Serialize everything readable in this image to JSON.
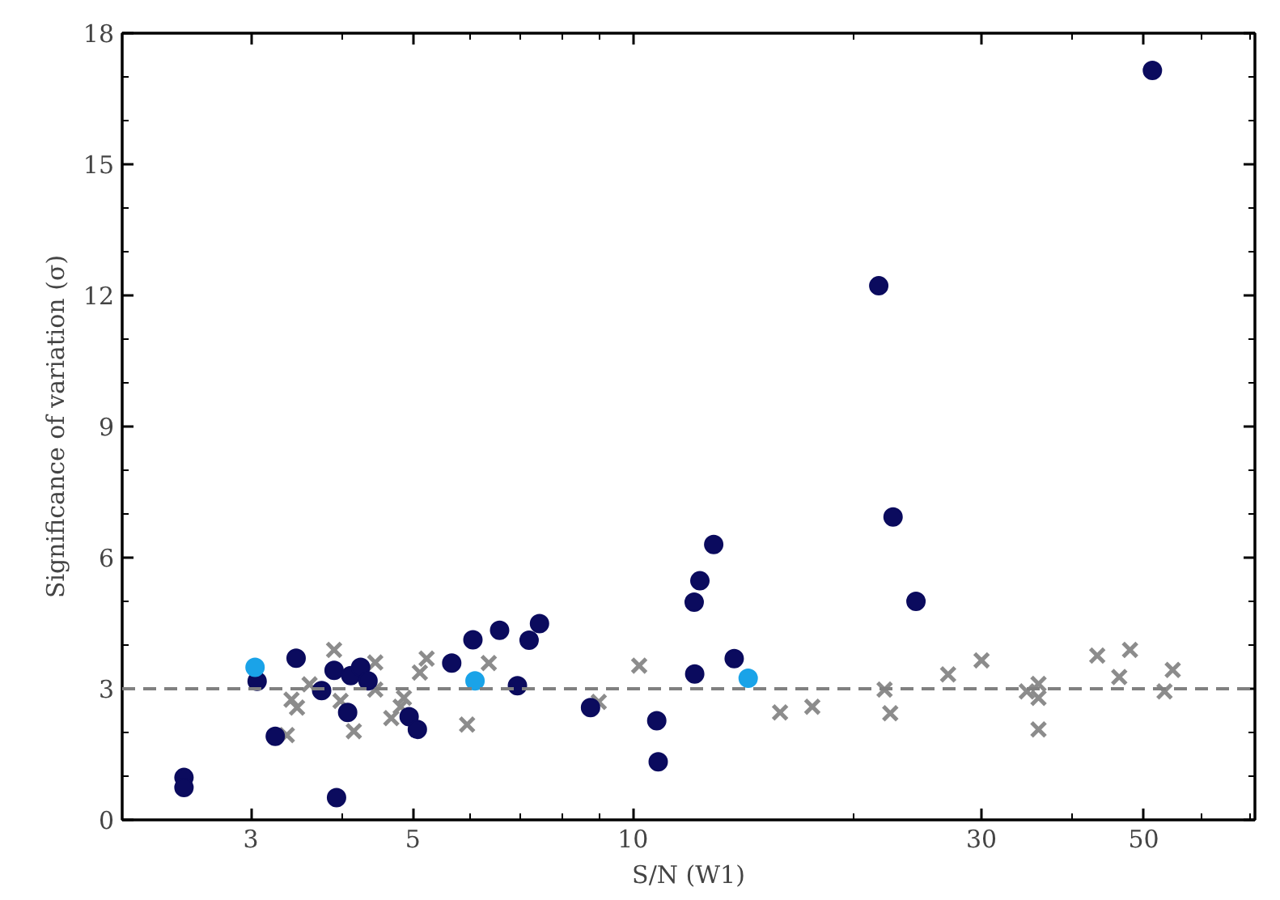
{
  "chart_data": {
    "type": "scatter",
    "xlabel": "S/N (W1)",
    "ylabel": "Significance of variation (σ)",
    "log": "x",
    "grid": false,
    "xlim": [
      2.0,
      71
    ],
    "ylim": [
      0,
      18
    ],
    "xticks": [
      {
        "value": 2,
        "label": null
      },
      3,
      {
        "value": 4,
        "label": null
      },
      5,
      {
        "value": 6,
        "label": null
      },
      {
        "value": 7,
        "label": null
      },
      {
        "value": 8,
        "label": null
      },
      {
        "value": 9,
        "label": null
      },
      10,
      {
        "value": 20,
        "label": null
      },
      30,
      {
        "value": 40,
        "label": null
      },
      50,
      {
        "value": 60,
        "label": null
      },
      {
        "value": 70,
        "label": null
      }
    ],
    "yticks": [
      0,
      {
        "value": 1,
        "label": null
      },
      {
        "value": 2,
        "label": null
      },
      3,
      {
        "value": 4,
        "label": null
      },
      {
        "value": 5,
        "label": null
      },
      6,
      {
        "value": 7,
        "label": null
      },
      {
        "value": 8,
        "label": null
      },
      9,
      {
        "value": 10,
        "label": null
      },
      {
        "value": 11,
        "label": null
      },
      12,
      {
        "value": 13,
        "label": null
      },
      {
        "value": 14,
        "label": null
      },
      15,
      {
        "value": 16,
        "label": null
      },
      {
        "value": 17,
        "label": null
      },
      18
    ],
    "ref_lines": [
      {
        "axis": "y",
        "value": 3,
        "label": null,
        "color": "#808080",
        "line_style": "dashed"
      }
    ],
    "series": [
      {
        "color": "#8c8c8c",
        "marker": "cross",
        "x": [
          3.9,
          3.61,
          3.41,
          3.47,
          3.36,
          4.44,
          4.44,
          3.98,
          4.15,
          4.67,
          4.81,
          4.86,
          5.11,
          5.22,
          5.93,
          6.35,
          8.98,
          10.2,
          15.9,
          17.6,
          22.1,
          22.5,
          27.0,
          30.0,
          34.6,
          35.9,
          35.9,
          35.9,
          43.2,
          46.3,
          47.9,
          53.4,
          54.8
        ],
        "values": [
          3.89,
          3.1,
          2.75,
          2.57,
          1.94,
          3.6,
          2.98,
          2.72,
          2.03,
          2.33,
          2.59,
          2.79,
          3.37,
          3.69,
          2.18,
          3.59,
          2.7,
          3.53,
          2.46,
          2.59,
          2.98,
          2.44,
          3.33,
          3.65,
          2.94,
          3.11,
          2.79,
          2.07,
          3.76,
          3.27,
          3.89,
          2.94,
          3.43
        ]
      },
      {
        "color": "#0b0b5e",
        "marker": "circle",
        "x": [
          2.43,
          2.43,
          3.06,
          3.24,
          3.46,
          3.75,
          4.07,
          3.9,
          3.93,
          4.11,
          4.24,
          4.34,
          4.94,
          5.07,
          5.65,
          6.04,
          6.57,
          6.95,
          7.21,
          7.45,
          8.75,
          10.78,
          10.83,
          12.13,
          12.35,
          12.9,
          12.15,
          13.76,
          22.7,
          24.4,
          21.7,
          51.4
        ],
        "values": [
          0.97,
          0.74,
          3.17,
          1.91,
          3.7,
          2.96,
          2.46,
          3.42,
          0.51,
          3.3,
          3.49,
          3.18,
          2.36,
          2.07,
          3.59,
          4.12,
          4.34,
          3.07,
          4.11,
          4.49,
          2.57,
          2.27,
          1.33,
          4.98,
          5.47,
          6.3,
          3.34,
          3.69,
          6.93,
          5.0,
          12.22,
          17.15
        ]
      },
      {
        "color": "#1aa3e8",
        "marker": "circle",
        "x": [
          3.04,
          6.08,
          14.38
        ],
        "values": [
          3.49,
          3.18,
          3.24
        ]
      }
    ]
  }
}
